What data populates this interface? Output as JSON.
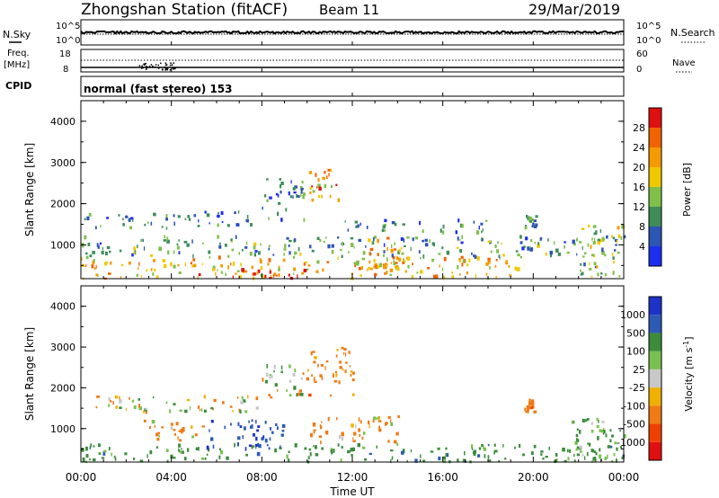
{
  "header": {
    "station": "Zhongshan Station (fitACF)",
    "beam": "Beam 11",
    "date": "29/Mar/2019"
  },
  "top_panels": {
    "nsky_label": "N.Sky",
    "nsearch_label": "N.Search",
    "scale_hi": "10^5",
    "scale_lo": "10^0",
    "freq_label": "Freq.",
    "freq_unit": "[MHz]",
    "freq_ticks": [
      "18",
      "8"
    ],
    "nave_label": "Nave",
    "nave_ticks": [
      "60",
      "0"
    ],
    "cpid_label": "CPID",
    "cpid_value": "normal (fast stereo) 153"
  },
  "colors": {
    "power": [
      "#1e2ef0",
      "#2d55b4",
      "#3e8c5a",
      "#7fbf4a",
      "#f0c800",
      "#f59a00",
      "#f06400",
      "#e01010"
    ],
    "velocity": [
      "#e01010",
      "#f04000",
      "#f07a14",
      "#f0b000",
      "#c8c8c8",
      "#78c050",
      "#3c8c3c",
      "#2d5ab4",
      "#1e32c8"
    ]
  },
  "chart_data": [
    {
      "type": "heatmap",
      "title": "Power",
      "ylabel": "Slant Range [km]",
      "xlabel": "Time UT",
      "xlim": [
        "00:00",
        "00:00"
      ],
      "x_ticks": [
        "00:00",
        "04:00",
        "08:00",
        "12:00",
        "16:00",
        "20:00",
        "00:00"
      ],
      "ylim": [
        180,
        4500
      ],
      "y_ticks": [
        1000,
        2000,
        3000,
        4000
      ],
      "colorbar": {
        "label": "Power [dB]",
        "ticks": [
          "4",
          "8",
          "12",
          "16",
          "20",
          "24",
          "28"
        ],
        "range": [
          0,
          32
        ]
      },
      "features": [
        {
          "t_start": 0.0,
          "t_end": 19.5,
          "range_km_min": 180,
          "range_km_max": 700,
          "power_db": 20
        },
        {
          "t_start": 5.0,
          "t_end": 10.0,
          "range_km_min": 180,
          "range_km_max": 400,
          "power_db": 28
        },
        {
          "t_start": 0.0,
          "t_end": 24.0,
          "range_km_min": 700,
          "range_km_max": 1200,
          "power_db": 10
        },
        {
          "t_start": 12.5,
          "t_end": 14.5,
          "range_km_min": 400,
          "range_km_max": 1200,
          "power_db": 22
        },
        {
          "t_start": 0.0,
          "t_end": 7.5,
          "range_km_min": 1400,
          "range_km_max": 1800,
          "power_db": 8
        },
        {
          "t_start": 8.0,
          "t_end": 10.0,
          "range_km_min": 1600,
          "range_km_max": 2600,
          "power_db": 8
        },
        {
          "t_start": 10.0,
          "t_end": 11.5,
          "range_km_min": 2000,
          "range_km_max": 3000,
          "power_db": 22
        },
        {
          "t_start": 11.5,
          "t_end": 18.0,
          "range_km_min": 1300,
          "range_km_max": 1600,
          "power_db": 9
        },
        {
          "t_start": 19.6,
          "t_end": 20.1,
          "range_km_min": 1400,
          "range_km_max": 1700,
          "power_db": 12
        },
        {
          "t_start": 22.0,
          "t_end": 24.0,
          "range_km_min": 180,
          "range_km_max": 1500,
          "power_db": 14
        }
      ]
    },
    {
      "type": "heatmap",
      "title": "Velocity",
      "ylabel": "Slant Range [km]",
      "xlabel": "Time UT",
      "xlim": [
        "00:00",
        "00:00"
      ],
      "x_ticks": [
        "00:00",
        "04:00",
        "08:00",
        "12:00",
        "16:00",
        "20:00",
        "00:00"
      ],
      "ylim": [
        180,
        4500
      ],
      "y_ticks": [
        1000,
        2000,
        3000,
        4000
      ],
      "colorbar": {
        "label": "Velocity [m s^-1]",
        "ticks": [
          "1000",
          "500",
          "100",
          "25",
          "-25",
          "-100",
          "-500",
          "-1000"
        ]
      },
      "features": [
        {
          "t_start": 0.0,
          "t_end": 24.0,
          "range_km_min": 180,
          "range_km_max": 600,
          "velocity_ms": 300
        },
        {
          "t_start": 5.5,
          "t_end": 9.0,
          "range_km_min": 500,
          "range_km_max": 1200,
          "velocity_ms": 900
        },
        {
          "t_start": 2.5,
          "t_end": 5.5,
          "range_km_min": 700,
          "range_km_max": 1200,
          "velocity_ms": -150
        },
        {
          "t_start": 10.0,
          "t_end": 14.0,
          "range_km_min": 600,
          "range_km_max": 1300,
          "velocity_ms": -200
        },
        {
          "t_start": 0.0,
          "t_end": 8.0,
          "range_km_min": 1400,
          "range_km_max": 1800,
          "velocity_ms": 0
        },
        {
          "t_start": 8.0,
          "t_end": 10.0,
          "range_km_min": 1700,
          "range_km_max": 2600,
          "velocity_ms": 0
        },
        {
          "t_start": 10.0,
          "t_end": 12.0,
          "range_km_min": 1800,
          "range_km_max": 3000,
          "velocity_ms": -300
        },
        {
          "t_start": 19.6,
          "t_end": 20.1,
          "range_km_min": 1400,
          "range_km_max": 1700,
          "velocity_ms": -300
        },
        {
          "t_start": 21.5,
          "t_end": 24.0,
          "range_km_min": 180,
          "range_km_max": 1300,
          "velocity_ms": 200
        }
      ]
    }
  ]
}
